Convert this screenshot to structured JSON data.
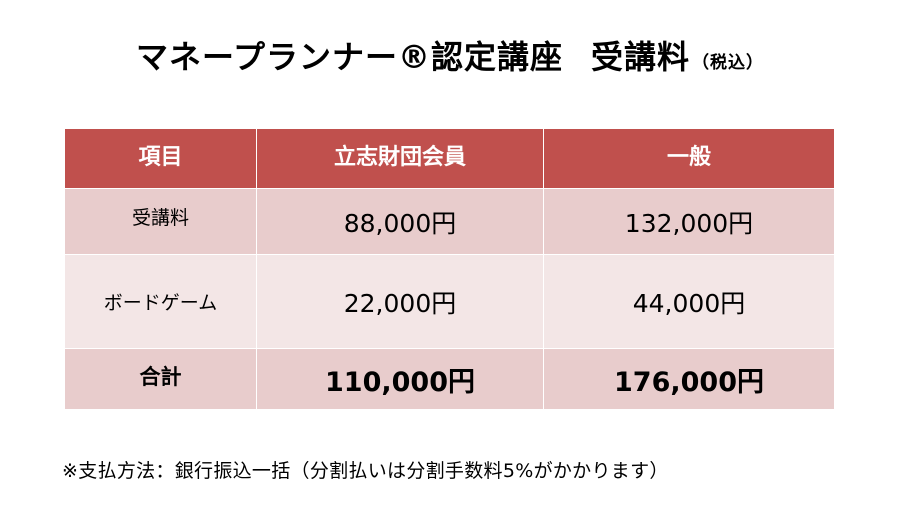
{
  "title": {
    "main": "マネープランナー®認定講座",
    "sub": "受講料",
    "tax_note": "（税込）"
  },
  "table": {
    "headers": [
      "項目",
      "立志財団会員",
      "一般"
    ],
    "rows": [
      {
        "label": "受講料",
        "member": "88,000円",
        "general": "132,000円"
      },
      {
        "label": "ボードゲーム",
        "member": "22,000円",
        "general": "44,000円"
      },
      {
        "label": "合計",
        "member": "110,000円",
        "general": "176,000円"
      }
    ],
    "colors": {
      "header_bg": "#c0504d",
      "row_dark": "#e8cccc",
      "row_light": "#f3e6e6"
    }
  },
  "note": "※支払方法：銀行振込一括（分割払いは分割手数料5%がかかります）"
}
